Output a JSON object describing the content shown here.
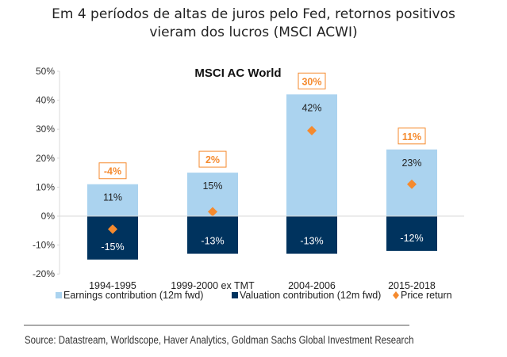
{
  "header": {
    "title_line1": "Em 4 períodos de altas de juros pelo Fed, retornos positivos",
    "title_line2": "vieram dos lucros (MSCI ACWI)"
  },
  "chart_data": {
    "type": "bar",
    "stacked": true,
    "title": "MSCI AC World",
    "categories": [
      "1994-1995",
      "1999-2000 ex TMT",
      "2004-2006",
      "2015-2018"
    ],
    "series": [
      {
        "name": "Earnings contribution (12m fwd)",
        "type": "bar",
        "color": "#abd3ef",
        "values": [
          11,
          15,
          42,
          23
        ],
        "labels": [
          "11%",
          "15%",
          "42%",
          "23%"
        ]
      },
      {
        "name": "Valuation contribution (12m fwd)",
        "type": "bar",
        "color": "#00335e",
        "values": [
          -15,
          -13,
          -13,
          -12
        ],
        "labels": [
          "-15%",
          "-13%",
          "-13%",
          "-12%"
        ]
      },
      {
        "name": "Price return",
        "type": "scatter",
        "marker": "diamond",
        "color": "#f58a2e",
        "values": [
          -4.5,
          1.5,
          29.5,
          11
        ],
        "labels": [
          "-4%",
          "2%",
          "30%",
          "11%"
        ]
      }
    ],
    "ylim": [
      -20,
      50
    ],
    "yticks": [
      "50%",
      "40%",
      "30%",
      "20%",
      "10%",
      "0%",
      "-10%",
      "-20%"
    ],
    "ytick_values": [
      50,
      40,
      30,
      20,
      10,
      0,
      -10,
      -20
    ],
    "xlabel": "",
    "ylabel": "",
    "grid": false,
    "legend_position": "bottom"
  },
  "footer": {
    "source": "Source: Datastream, Worldscope, Haver Analytics, Goldman Sachs Global Investment Research"
  }
}
